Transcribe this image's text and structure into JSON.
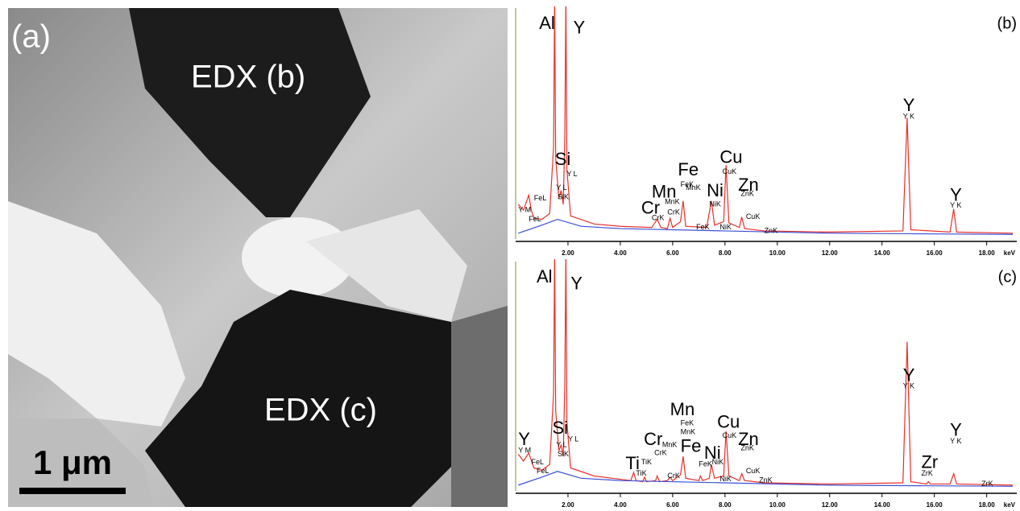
{
  "image": {
    "panel_label": "(a)",
    "region_b": "EDX (b)",
    "region_c": "EDX (c)",
    "scale_bar": "1 μm"
  },
  "chart_data": [
    {
      "type": "line",
      "panel_label": "(b)",
      "xlabel": "keV",
      "xlim": [
        0,
        19.15
      ],
      "ylim": [
        0,
        2000
      ],
      "xticks": [
        {
          "value": 2,
          "label": "2.00"
        },
        {
          "value": 4,
          "label": "4.00"
        },
        {
          "value": 6,
          "label": "6.00"
        },
        {
          "value": 8,
          "label": "8.00"
        },
        {
          "value": 10,
          "label": "10.00"
        },
        {
          "value": 12,
          "label": "12.00"
        },
        {
          "value": 14,
          "label": "14.00"
        },
        {
          "value": 16,
          "label": "16.00"
        },
        {
          "value": 18,
          "label": "18.00"
        }
      ],
      "series": [
        {
          "color": "#e8302a",
          "x": [
            0.1,
            0.3,
            0.5,
            0.6,
            0.7,
            1.0,
            1.3,
            1.45,
            1.49,
            1.53,
            1.65,
            1.74,
            1.82,
            1.88,
            1.92,
            1.96,
            2.1,
            3.0,
            4.0,
            5.2,
            5.41,
            5.55,
            5.8,
            5.9,
            6.0,
            6.3,
            6.4,
            6.5,
            7.3,
            7.48,
            7.6,
            7.95,
            8.04,
            8.15,
            8.55,
            8.64,
            8.75,
            9.5,
            12.0,
            14.8,
            14.96,
            15.1,
            16.6,
            16.74,
            16.85,
            19.0
          ],
          "values": [
            300,
            250,
            380,
            250,
            180,
            170,
            220,
            800,
            2100,
            700,
            350,
            420,
            300,
            900,
            2100,
            600,
            200,
            130,
            110,
            100,
            170,
            100,
            90,
            180,
            100,
            150,
            330,
            110,
            100,
            330,
            120,
            150,
            640,
            140,
            100,
            190,
            90,
            70,
            60,
            70,
            1050,
            80,
            60,
            260,
            60,
            50
          ]
        },
        {
          "color": "#3a4fd8",
          "x": [
            0.1,
            1.0,
            1.6,
            2.5,
            4,
            8,
            12,
            19
          ],
          "values": [
            50,
            120,
            170,
            110,
            90,
            70,
            50,
            40
          ]
        }
      ],
      "element_labels": [
        {
          "text": "Al",
          "x": 0.9,
          "y": 1860
        },
        {
          "text": "Y",
          "x": 2.2,
          "y": 1820
        },
        {
          "text": "Si",
          "x": 1.5,
          "y": 680
        },
        {
          "text": "Mn",
          "x": 5.2,
          "y": 400
        },
        {
          "text": "Fe",
          "x": 6.2,
          "y": 590
        },
        {
          "text": "Cr",
          "x": 4.8,
          "y": 260
        },
        {
          "text": "Ni",
          "x": 7.3,
          "y": 410
        },
        {
          "text": "Cu",
          "x": 7.8,
          "y": 700
        },
        {
          "text": "Zn",
          "x": 8.5,
          "y": 460
        },
        {
          "text": "Y",
          "x": 14.8,
          "y": 1150
        },
        {
          "text": "Y",
          "x": 16.6,
          "y": 370
        }
      ],
      "line_labels": [
        {
          "text": "Y L",
          "x": 1.95,
          "y": 560
        },
        {
          "text": "Y L",
          "x": 1.55,
          "y": 440
        },
        {
          "text": "SiK",
          "x": 1.6,
          "y": 360
        },
        {
          "text": "FeL",
          "x": 0.7,
          "y": 350
        },
        {
          "text": "Y M",
          "x": 0.1,
          "y": 250
        },
        {
          "text": "FeL",
          "x": 0.5,
          "y": 170
        },
        {
          "text": "FeK",
          "x": 6.3,
          "y": 470
        },
        {
          "text": "MnK",
          "x": 6.5,
          "y": 440
        },
        {
          "text": "MnK",
          "x": 5.7,
          "y": 320
        },
        {
          "text": "CrK",
          "x": 5.8,
          "y": 230
        },
        {
          "text": "CrK",
          "x": 5.2,
          "y": 180
        },
        {
          "text": "NiK",
          "x": 7.4,
          "y": 300
        },
        {
          "text": "CuK",
          "x": 7.9,
          "y": 580
        },
        {
          "text": "ZnK",
          "x": 8.6,
          "y": 390
        },
        {
          "text": "FeK",
          "x": 6.9,
          "y": 100
        },
        {
          "text": "NiK",
          "x": 7.8,
          "y": 100
        },
        {
          "text": "CuK",
          "x": 8.8,
          "y": 190
        },
        {
          "text": "ZnK",
          "x": 9.5,
          "y": 70
        },
        {
          "text": "Y K",
          "x": 14.8,
          "y": 1060
        },
        {
          "text": "Y K",
          "x": 16.6,
          "y": 290
        }
      ]
    },
    {
      "type": "line",
      "panel_label": "(c)",
      "xlabel": "keV",
      "xlim": [
        0,
        19.15
      ],
      "ylim": [
        0,
        2000
      ],
      "xticks": [
        {
          "value": 2,
          "label": "2.00"
        },
        {
          "value": 4,
          "label": "4.00"
        },
        {
          "value": 6,
          "label": "6.00"
        },
        {
          "value": 8,
          "label": "8.00"
        },
        {
          "value": 10,
          "label": "10.00"
        },
        {
          "value": 12,
          "label": "12.00"
        },
        {
          "value": 14,
          "label": "14.00"
        },
        {
          "value": 16,
          "label": "16.00"
        },
        {
          "value": 18,
          "label": "18.00"
        }
      ],
      "series": [
        {
          "color": "#e8302a",
          "x": [
            0.1,
            0.3,
            0.5,
            0.7,
            1.0,
            1.3,
            1.45,
            1.49,
            1.53,
            1.65,
            1.74,
            1.82,
            1.88,
            1.92,
            1.96,
            2.1,
            3.0,
            4.4,
            4.51,
            4.6,
            4.85,
            4.93,
            5.0,
            5.35,
            5.41,
            5.5,
            5.8,
            5.9,
            6.0,
            6.3,
            6.4,
            6.5,
            7.0,
            7.06,
            7.15,
            7.4,
            7.48,
            7.6,
            7.95,
            8.04,
            8.15,
            8.55,
            8.64,
            8.75,
            9.5,
            12.0,
            14.8,
            14.96,
            15.1,
            15.7,
            15.77,
            15.85,
            16.6,
            16.74,
            16.85,
            19.0
          ],
          "values": [
            320,
            260,
            330,
            200,
            180,
            230,
            850,
            2100,
            700,
            350,
            400,
            300,
            950,
            2100,
            600,
            200,
            130,
            90,
            160,
            90,
            80,
            120,
            80,
            90,
            130,
            80,
            90,
            120,
            90,
            140,
            300,
            110,
            90,
            130,
            90,
            110,
            230,
            110,
            130,
            520,
            130,
            90,
            150,
            90,
            70,
            60,
            70,
            1300,
            80,
            60,
            80,
            60,
            60,
            150,
            60,
            50
          ]
        },
        {
          "color": "#3a4fd8",
          "x": [
            0.1,
            1.0,
            1.6,
            2.5,
            4,
            8,
            12,
            19
          ],
          "values": [
            50,
            120,
            170,
            110,
            90,
            70,
            50,
            40
          ]
        }
      ],
      "element_labels": [
        {
          "text": "Al",
          "x": 0.8,
          "y": 1860
        },
        {
          "text": "Y",
          "x": 2.1,
          "y": 1800
        },
        {
          "text": "Y",
          "x": 0.1,
          "y": 440
        },
        {
          "text": "Si",
          "x": 1.4,
          "y": 540
        },
        {
          "text": "Ti",
          "x": 4.2,
          "y": 230
        },
        {
          "text": "Cr",
          "x": 4.9,
          "y": 440
        },
        {
          "text": "Mn",
          "x": 5.9,
          "y": 700
        },
        {
          "text": "Fe",
          "x": 6.3,
          "y": 380
        },
        {
          "text": "Ni",
          "x": 7.2,
          "y": 320
        },
        {
          "text": "Cu",
          "x": 7.7,
          "y": 590
        },
        {
          "text": "Zn",
          "x": 8.5,
          "y": 440
        },
        {
          "text": "Y",
          "x": 14.8,
          "y": 1000
        },
        {
          "text": "Zr",
          "x": 15.5,
          "y": 240
        },
        {
          "text": "Y",
          "x": 16.6,
          "y": 520
        }
      ],
      "line_labels": [
        {
          "text": "Y M",
          "x": 0.1,
          "y": 350
        },
        {
          "text": "FeL",
          "x": 0.6,
          "y": 250
        },
        {
          "text": "FeL",
          "x": 0.8,
          "y": 170
        },
        {
          "text": "Y L",
          "x": 1.55,
          "y": 400
        },
        {
          "text": "Y L",
          "x": 2.0,
          "y": 450
        },
        {
          "text": "SiK",
          "x": 1.6,
          "y": 320
        },
        {
          "text": "TiK",
          "x": 4.8,
          "y": 250
        },
        {
          "text": "TiK",
          "x": 4.6,
          "y": 150
        },
        {
          "text": "MnK",
          "x": 5.6,
          "y": 400
        },
        {
          "text": "CrK",
          "x": 5.3,
          "y": 330
        },
        {
          "text": "FeK",
          "x": 6.3,
          "y": 590
        },
        {
          "text": "MnK",
          "x": 6.3,
          "y": 510
        },
        {
          "text": "CrK",
          "x": 5.8,
          "y": 130
        },
        {
          "text": "FeK",
          "x": 7.0,
          "y": 230
        },
        {
          "text": "NiK",
          "x": 7.5,
          "y": 250
        },
        {
          "text": "CuK",
          "x": 7.9,
          "y": 480
        },
        {
          "text": "ZnK",
          "x": 8.6,
          "y": 370
        },
        {
          "text": "NiK",
          "x": 7.8,
          "y": 100
        },
        {
          "text": "CuK",
          "x": 8.8,
          "y": 170
        },
        {
          "text": "ZnK",
          "x": 9.3,
          "y": 90
        },
        {
          "text": "Y K",
          "x": 14.8,
          "y": 910
        },
        {
          "text": "ZrK",
          "x": 15.5,
          "y": 150
        },
        {
          "text": "Y K",
          "x": 16.6,
          "y": 430
        },
        {
          "text": "ZrK",
          "x": 17.8,
          "y": 60
        }
      ]
    }
  ]
}
